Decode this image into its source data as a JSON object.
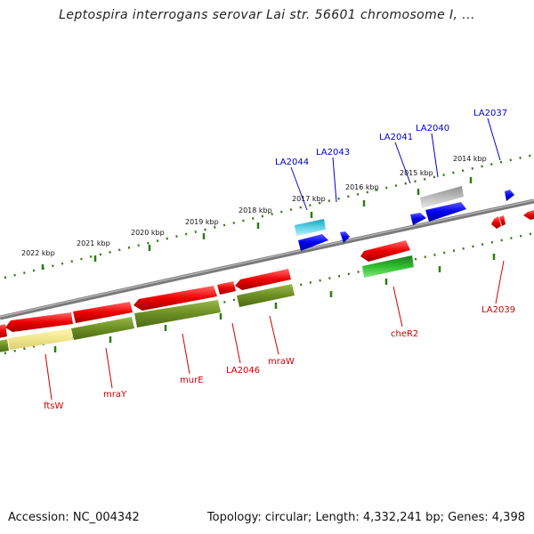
{
  "title": "Leptospira interrogans serovar Lai str. 56601 chromosome I, ...",
  "footer": {
    "accession": "Accession: NC_004342",
    "summary": "Topology: circular; Length: 4,332,241 bp; Genes: 4,398"
  },
  "colors": {
    "backbone": "#808080",
    "tick": "#2e7d12",
    "gene_red": "#ff0000",
    "gene_blue": "#0000ff",
    "gene_olive": "#6b8e23",
    "gene_green": "#22aa22",
    "gene_yellow": "#f0e68c",
    "gene_gray": "#b0b0b0",
    "gene_cyan": "#33bbcc",
    "label_top": "#0000cc",
    "label_bottom": "#cc0000"
  },
  "kbp_labels": [
    "2022 kbp",
    "2021 kbp",
    "2020 kbp",
    "2019 kbp",
    "2018 kbp",
    "2017 kbp",
    "2016 kbp",
    "2015 kbp",
    "2014 kbp"
  ],
  "top_labels": [
    "LA2044",
    "LA2043",
    "LA2041",
    "LA2040",
    "LA2037"
  ],
  "bottom_labels": [
    "ftsW",
    "mraY",
    "murE",
    "LA2046",
    "mraW",
    "cheR2",
    "LA2039"
  ]
}
